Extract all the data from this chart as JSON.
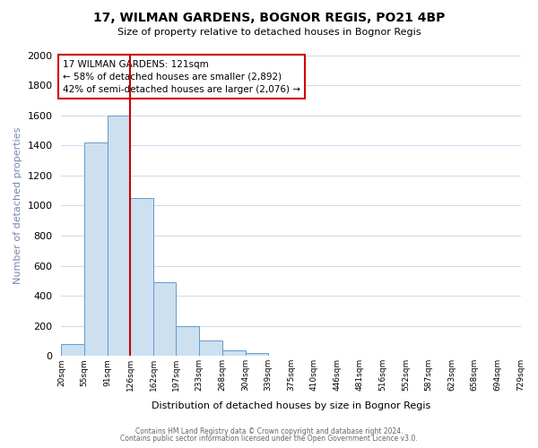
{
  "title": "17, WILMAN GARDENS, BOGNOR REGIS, PO21 4BP",
  "subtitle": "Size of property relative to detached houses in Bognor Regis",
  "xlabel": "Distribution of detached houses by size in Bognor Regis",
  "ylabel": "Number of detached properties",
  "bin_labels": [
    "20sqm",
    "55sqm",
    "91sqm",
    "126sqm",
    "162sqm",
    "197sqm",
    "233sqm",
    "268sqm",
    "304sqm",
    "339sqm",
    "375sqm",
    "410sqm",
    "446sqm",
    "481sqm",
    "516sqm",
    "552sqm",
    "587sqm",
    "623sqm",
    "658sqm",
    "694sqm",
    "729sqm"
  ],
  "bin_edges": [
    20,
    55,
    91,
    126,
    162,
    197,
    233,
    268,
    304,
    339,
    375,
    410,
    446,
    481,
    516,
    552,
    587,
    623,
    658,
    694,
    729
  ],
  "bar_heights": [
    80,
    1420,
    1600,
    1050,
    490,
    200,
    105,
    40,
    20,
    0,
    0,
    0,
    0,
    0,
    0,
    0,
    0,
    0,
    0,
    0
  ],
  "bar_color": "#cce0f0",
  "bar_edge_color": "#6699cc",
  "property_size": 121,
  "vline_x": 126,
  "vline_color": "#cc0000",
  "annotation_title": "17 WILMAN GARDENS: 121sqm",
  "annotation_line1": "← 58% of detached houses are smaller (2,892)",
  "annotation_line2": "42% of semi-detached houses are larger (2,076) →",
  "annotation_box_facecolor": "#ffffff",
  "annotation_box_edgecolor": "#cc0000",
  "ylim": [
    0,
    2000
  ],
  "yticks": [
    0,
    200,
    400,
    600,
    800,
    1000,
    1200,
    1400,
    1600,
    1800,
    2000
  ],
  "footer1": "Contains HM Land Registry data © Crown copyright and database right 2024.",
  "footer2": "Contains public sector information licensed under the Open Government Licence v3.0.",
  "bg_color": "#ffffff",
  "grid_color": "#ccddee",
  "ylabel_color": "#7788aa"
}
